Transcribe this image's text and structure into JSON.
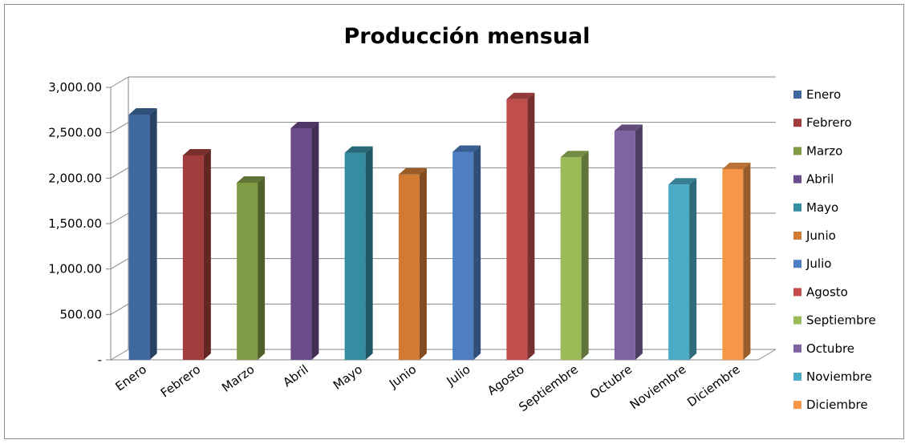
{
  "chart_data": {
    "type": "bar",
    "title": "Producción mensual",
    "xlabel": "",
    "ylabel": "",
    "categories": [
      "Enero",
      "Febrero",
      "Marzo",
      "Abril",
      "Mayo",
      "Junio",
      "Julio",
      "Agosto",
      "Septiembre",
      "Octubre",
      "Noviembre",
      "Diciembre"
    ],
    "values": [
      2700,
      2250,
      1950,
      2550,
      2280,
      2040,
      2290,
      2870,
      2230,
      2520,
      1930,
      2100
    ],
    "ylim": [
      0,
      3000
    ],
    "yticks": [
      0,
      500,
      1000,
      1500,
      2000,
      2500,
      3000
    ],
    "ytick_labels": [
      "-",
      "500.00",
      "1,000.00",
      "1,500.00",
      "2,000.00",
      "2,500.00",
      "3,000.00"
    ],
    "grid": true,
    "legend_position": "right",
    "colors": [
      "#3f6aa1",
      "#a03d3c",
      "#7f9b46",
      "#6b4c8c",
      "#368ca1",
      "#d07a33",
      "#4d7fc2",
      "#c24d4b",
      "#9bbb59",
      "#8064a2",
      "#4bacc6",
      "#f79646"
    ]
  }
}
